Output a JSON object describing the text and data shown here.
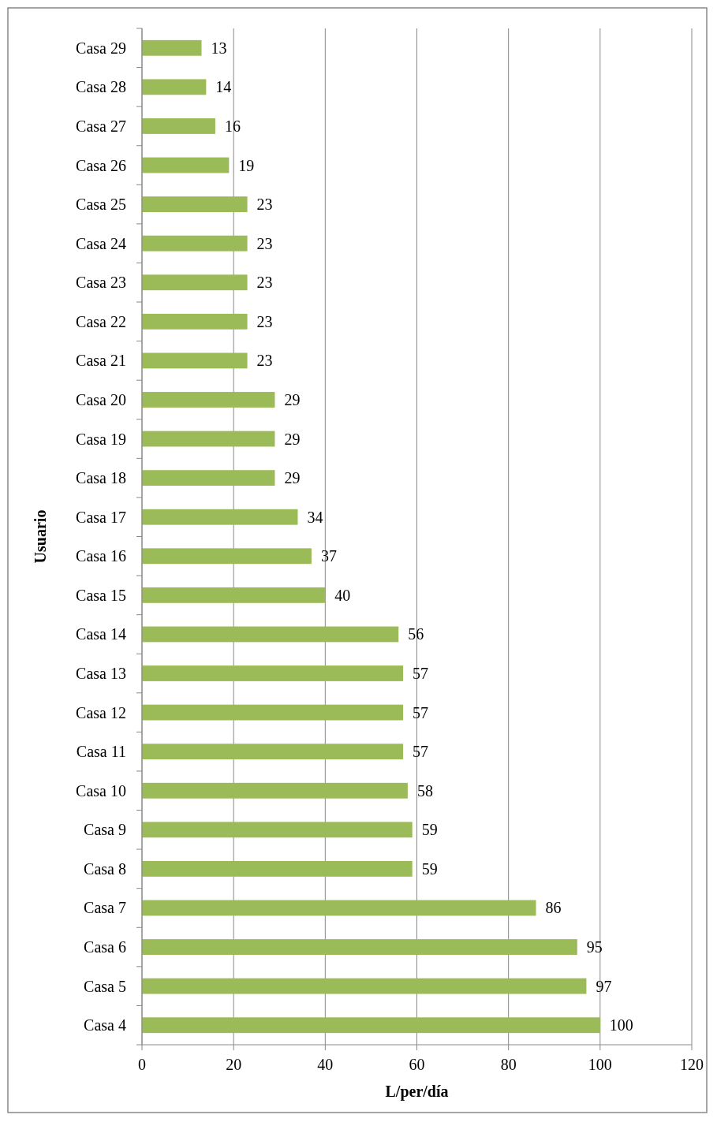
{
  "chart_data": {
    "type": "bar",
    "orientation": "horizontal",
    "xlabel": "L/per/día",
    "ylabel": "Usuario",
    "categories": [
      "Casa 29",
      "Casa 28",
      "Casa 27",
      "Casa 26",
      "Casa 25",
      "Casa 24",
      "Casa 23",
      "Casa 22",
      "Casa 21",
      "Casa 20",
      "Casa 19",
      "Casa 18",
      "Casa 17",
      "Casa 16",
      "Casa 15",
      "Casa 14",
      "Casa 13",
      "Casa 12",
      "Casa 11",
      "Casa 10",
      "Casa 9",
      "Casa 8",
      "Casa 7",
      "Casa 6",
      "Casa 5",
      "Casa 4"
    ],
    "values": [
      13,
      14,
      16,
      19,
      23,
      23,
      23,
      23,
      23,
      29,
      29,
      29,
      34,
      37,
      40,
      56,
      57,
      57,
      57,
      58,
      59,
      59,
      86,
      95,
      97,
      100
    ],
    "color": "#9bbb59",
    "xlim": [
      0,
      120
    ],
    "xticks": [
      0,
      20,
      40,
      60,
      80,
      100,
      120
    ],
    "grid": "x",
    "data_labels": true
  }
}
